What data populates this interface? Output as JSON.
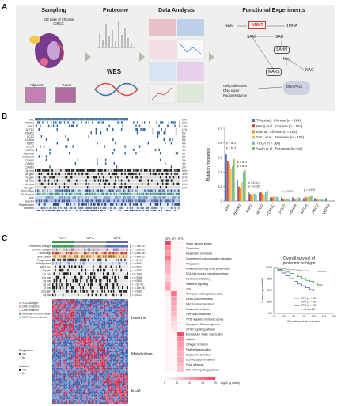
{
  "panel_letters": {
    "a": "A",
    "b": "B",
    "c": "C"
  },
  "panel_a": {
    "sampling": {
      "title": "Sampling",
      "description": "232 pairs of Chinese ccRCC",
      "labels": [
        "Adjacent",
        "Tumor"
      ]
    },
    "proteome": {
      "title": "Proteome",
      "wes": "WES"
    },
    "data_analysis": {
      "title": "Data Analysis"
    },
    "functional": {
      "title": "Functional Experiments",
      "nodes": [
        "NAM",
        "NNMT",
        "1MNA",
        "SAM",
        "SAH",
        "SAHH",
        "Hcy",
        "MARS",
        "NAC",
        "DNA-PKcs"
      ],
      "outcome_lines": [
        "Cell proliferation",
        "DNA repair",
        "Radioresistance"
      ]
    }
  },
  "panel_b": {
    "genes": [
      "VHL",
      "PBRM1",
      "BAP1",
      "SETD2",
      "KDM5C",
      "PCLO",
      "USH2A",
      "FSIP2",
      "MTOR",
      "NBPF9",
      "ADGRV1",
      "CCDC168",
      "CENPF",
      "CSMD2",
      "CSMD3"
    ],
    "gene_pcts": [
      "64%",
      "29%",
      "12%",
      "11%",
      "5%",
      "5%",
      "5%",
      "4%",
      "4%",
      "4%",
      "3%",
      "3%",
      "3%",
      "3%",
      "3%"
    ],
    "cnv_rows": [
      "3p loss",
      "5q gain",
      "7p gain",
      "9p loss",
      "14q loss",
      "20q gain"
    ],
    "cnv_pcts": [
      "60%",
      "48%",
      "31%",
      "28%",
      "26%",
      "14%"
    ],
    "clinical_rows": [
      "TNM Stage",
      "ISUP grade",
      "Age",
      "Gender",
      "Hypertension",
      "Diabetes",
      "Obesity",
      "AA"
    ],
    "legend": {
      "entries": [
        "This study, Chinese (n = 224)",
        "Wang et al., Chinese (n = 152)",
        "Bi et al., Chinese (n = 105)",
        "Sato, et al., Japanese (n = 106)",
        "TCGA (n = 368)",
        "Scelo et al., European (n = 94)"
      ],
      "colors": [
        "#4f6fb3",
        "#d2473a",
        "#e6922f",
        "#f2c94c",
        "#6cbad3",
        "#8dbd6a"
      ]
    }
  },
  "chart_data": [
    {
      "type": "bar",
      "ylabel": "Mutation frequency",
      "ylim": [
        0,
        1.0
      ],
      "yticks": [
        "0",
        "0.2",
        "0.4",
        "0.6",
        "0.8",
        "1.0"
      ],
      "categories": [
        "VHL",
        "PBRM1",
        "BAP1",
        "SETD2",
        "KDM5C",
        "PCLO",
        "USH2A",
        "MTOR",
        "FSIP2",
        "NBPF9"
      ],
      "series": [
        {
          "name": "This study, Chinese (n = 224)",
          "values": [
            0.64,
            0.29,
            0.12,
            0.11,
            0.05,
            0.05,
            0.05,
            0.04,
            0.04,
            0.04
          ]
        },
        {
          "name": "Wang et al., Chinese (n = 152)",
          "values": [
            0.55,
            0.2,
            0.1,
            0.12,
            0.05,
            0.03,
            0.03,
            0.06,
            0.03,
            0.0
          ]
        },
        {
          "name": "Bi et al., Chinese (n = 105)",
          "values": [
            0.52,
            0.18,
            0.08,
            0.1,
            0.06,
            0.02,
            0.02,
            0.05,
            0.02,
            0.0
          ]
        },
        {
          "name": "Sato, et al., Japanese (n = 106)",
          "values": [
            0.45,
            0.26,
            0.1,
            0.09,
            0.05,
            0.04,
            0.04,
            0.06,
            0.02,
            0.0
          ]
        },
        {
          "name": "TCGA (n = 368)",
          "values": [
            0.48,
            0.4,
            0.1,
            0.12,
            0.06,
            0.03,
            0.05,
            0.06,
            0.02,
            0.01
          ]
        },
        {
          "name": "Scelo et al., European (n = 94)",
          "values": [
            0.58,
            0.42,
            0.09,
            0.15,
            0.05,
            0.02,
            0.04,
            0.07,
            0.02,
            0.0
          ]
        }
      ],
      "annotations": [
        "p = 3e-5",
        "p = 1e-3",
        "p = 5e-3",
        "p = 5e-5",
        "p = 6.3e-3",
        "p = 0.035",
        "p = 0.043",
        "p = 0.035"
      ]
    },
    {
      "type": "bar",
      "xlabel": "-log10 (q value)",
      "xlim": [
        0,
        20
      ],
      "xticks": [
        "0",
        "5",
        "10",
        "15",
        "20"
      ],
      "categories": [
        "Innate immune system",
        "Translation",
        "Metabolism of proteins",
        "Complement and coagulation cascades",
        "Phagosome",
        "Antigen processing-cross presentation",
        "NOD-like receptor signaling pathway",
        "Membrane trafficking",
        "Interferon signaling",
        "TCR",
        "TCA cycle and respiratory chain",
        "Amino Acid metabolism",
        "Mitochondrial translation",
        "Metabolism of lipids",
        "Fatty acid metabolism",
        "TP53 regulates metabolic genes",
        "Glycolysis / Gluconeogenesis",
        "mTOR signaling pathway",
        "Extracellular matrix organization",
        "Integrin",
        "Collagen formation",
        "Platelet degranulation",
        "Elastic fibre formation",
        "ECM-receptor interaction",
        "Focal adhesion",
        "PI3K-AKT signaling pathway"
      ],
      "series": [
        {
          "name": "GP1",
          "values": [
            19,
            12,
            10,
            14,
            9,
            8,
            7,
            5,
            8,
            9,
            2,
            1,
            1,
            1,
            1,
            1,
            1,
            1,
            1,
            1,
            1,
            1,
            1,
            1,
            1,
            1
          ]
        },
        {
          "name": "GP2",
          "values": [
            1,
            1,
            1,
            1,
            1,
            1,
            1,
            1,
            1,
            1,
            14,
            10,
            9,
            8,
            7,
            5,
            4,
            3,
            1,
            1,
            1,
            1,
            1,
            1,
            1,
            1
          ]
        },
        {
          "name": "GP3",
          "values": [
            1,
            1,
            1,
            1,
            1,
            1,
            1,
            1,
            1,
            1,
            1,
            1,
            1,
            1,
            1,
            1,
            1,
            1,
            18,
            12,
            10,
            9,
            8,
            8,
            7,
            6
          ]
        }
      ]
    },
    {
      "type": "line",
      "title": "Overall survival of proteomic subtype",
      "xlabel": "Overall survival (months)",
      "ylabel": "Survival probability",
      "xlim": [
        0,
        150
      ],
      "ylim": [
        0,
        1.0
      ],
      "xticks": [
        "0",
        "25",
        "50",
        "75",
        "100",
        "125",
        "150"
      ],
      "yticks": [
        "0%",
        "25%",
        "50%",
        "75%",
        "100%"
      ],
      "series": [
        {
          "name": "GP1 (n = 55)",
          "x": [
            0,
            10,
            20,
            30,
            40,
            50,
            60,
            70,
            80,
            90,
            100,
            110,
            120
          ],
          "y": [
            1.0,
            0.96,
            0.93,
            0.9,
            0.87,
            0.84,
            0.8,
            0.76,
            0.72,
            0.7,
            0.66,
            0.62,
            0.6
          ]
        },
        {
          "name": "GP2 (n = 99)",
          "x": [
            0,
            10,
            20,
            30,
            40,
            50,
            60,
            70,
            80,
            90,
            100,
            110,
            120,
            130
          ],
          "y": [
            1.0,
            0.98,
            0.97,
            0.96,
            0.95,
            0.95,
            0.94,
            0.93,
            0.93,
            0.92,
            0.92,
            0.91,
            0.91,
            0.9
          ]
        },
        {
          "name": "GP3 (n = 78)",
          "x": [
            0,
            10,
            20,
            30,
            40,
            50,
            60,
            70,
            80,
            90,
            100
          ],
          "y": [
            1.0,
            0.94,
            0.88,
            0.82,
            0.76,
            0.7,
            0.64,
            0.6,
            0.56,
            0.52,
            0.48
          ]
        }
      ],
      "legend_title": "p < 1.0e-15",
      "colors": [
        "#3a9a4a",
        "#9a9a9a",
        "#5a6ab5"
      ]
    }
  ],
  "panel_c": {
    "groups": [
      "GP1",
      "GP2",
      "GP3"
    ],
    "heat_rows": [
      "Proteomic subtype",
      "CPTAC subtype",
      "TNM Stage",
      "ISUP Grade",
      "Progression",
      "AA signature",
      "BAP1 mut",
      "5q gain",
      "3p loss",
      "14q loss",
      "4q loss",
      "9p loss",
      "12 loss",
      "20q gain",
      "5q loss"
    ],
    "heat_pvals": [
      "p = 2.15e-15",
      "p = 1.21e-06",
      "p = 8.54e-06",
      "p = 9.94e-10",
      "p = 1.3e-07",
      "p = 0.5993",
      "p = 0.9722",
      "p = 0.0067",
      "p = 0.1361",
      "p = 0.0086",
      "p = 0.0384",
      "p = 4.5e-05",
      "p = 5.13e-05",
      "p = 0.0183",
      "p = 0.0123"
    ],
    "side_labels": [
      "Immune",
      "Metabolism",
      "ECM"
    ],
    "kw_legend_title": "CPTAC subtype",
    "kw_legend_entries": [
      "CD8+ Inflamed",
      "CD8- Inflamed",
      "Metabolic Immune-Desert",
      "VEGF Immune-Desert"
    ],
    "progression_title": "Progression",
    "progression_entries": [
      "Yes",
      "No"
    ],
    "mut_title": "Mutation",
    "mut_entries": [
      "Yes",
      "No"
    ]
  }
}
